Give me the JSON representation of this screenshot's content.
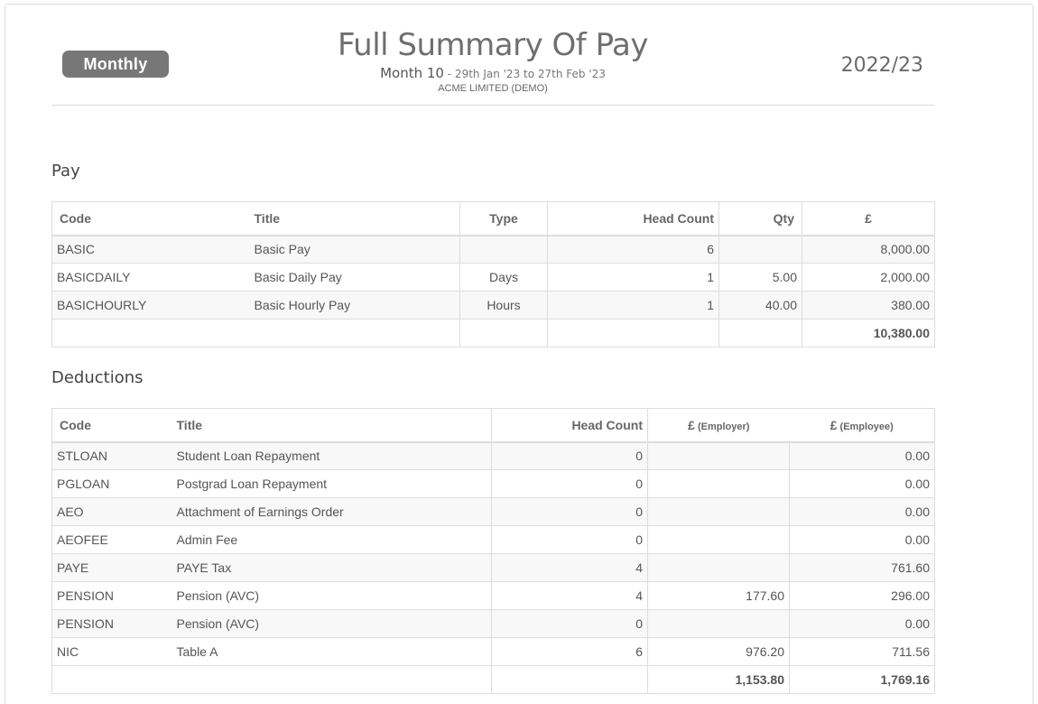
{
  "header": {
    "badge": "Monthly",
    "title": "Full Summary Of Pay",
    "month": "Month 10",
    "range": " - 29th Jan '23 to 27th Feb '23",
    "company": "ACME LIMITED (DEMO)",
    "year": "2022/23"
  },
  "pay": {
    "section_title": "Pay",
    "columns": [
      "Code",
      "Title",
      "Type",
      "Head Count",
      "Qty",
      "£"
    ],
    "rows": [
      {
        "code": "BASIC",
        "title": "Basic Pay",
        "type": "",
        "head_count": "6",
        "qty": "",
        "amount": "8,000.00"
      },
      {
        "code": "BASICDAILY",
        "title": "Basic Daily Pay",
        "type": "Days",
        "head_count": "1",
        "qty": "5.00",
        "amount": "2,000.00"
      },
      {
        "code": "BASICHOURLY",
        "title": "Basic Hourly Pay",
        "type": "Hours",
        "head_count": "1",
        "qty": "40.00",
        "amount": "380.00"
      }
    ],
    "total": "10,380.00"
  },
  "deductions": {
    "section_title": "Deductions",
    "columns": {
      "code": "Code",
      "title": "Title",
      "head_count": "Head Count",
      "employer_sym": "£",
      "employer_label": " (Employer)",
      "employee_sym": "£",
      "employee_label": " (Employee)"
    },
    "rows": [
      {
        "code": "STLOAN",
        "title": "Student Loan Repayment",
        "head_count": "0",
        "employer": "",
        "employee": "0.00"
      },
      {
        "code": "PGLOAN",
        "title": "Postgrad Loan Repayment",
        "head_count": "0",
        "employer": "",
        "employee": "0.00"
      },
      {
        "code": "AEO",
        "title": "Attachment of Earnings Order",
        "head_count": "0",
        "employer": "",
        "employee": "0.00"
      },
      {
        "code": "AEOFEE",
        "title": "Admin Fee",
        "head_count": "0",
        "employer": "",
        "employee": "0.00"
      },
      {
        "code": "PAYE",
        "title": "PAYE Tax",
        "head_count": "4",
        "employer": "",
        "employee": "761.60"
      },
      {
        "code": "PENSION",
        "title": "Pension (AVC)",
        "head_count": "4",
        "employer": "177.60",
        "employee": "296.00"
      },
      {
        "code": "PENSION",
        "title": "Pension (AVC)",
        "head_count": "0",
        "employer": "",
        "employee": "0.00"
      },
      {
        "code": "NIC",
        "title": "Table A",
        "head_count": "6",
        "employer": "976.20",
        "employee": "711.56"
      }
    ],
    "total_employer": "1,153.80",
    "total_employee": "1,769.16"
  }
}
